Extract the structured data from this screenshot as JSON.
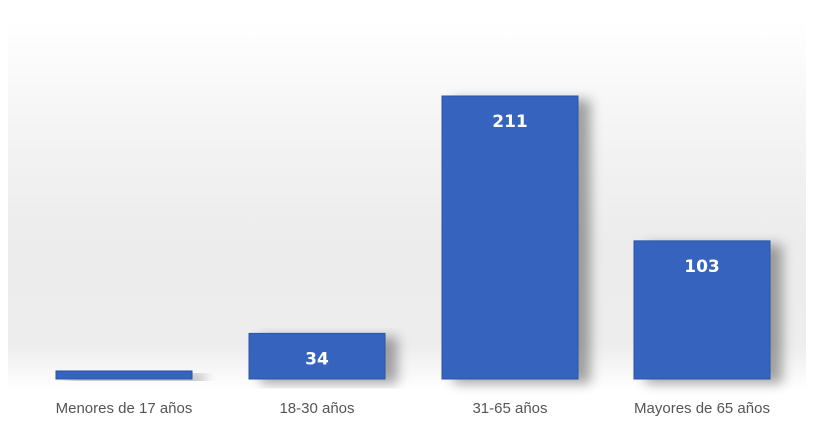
{
  "chart_data": {
    "type": "bar",
    "title": "",
    "xlabel": "",
    "ylabel": "",
    "categories": [
      "Menores de 17 años",
      "18-30 años",
      "31-65 años",
      "Mayores de 65 años"
    ],
    "values": [
      6,
      34,
      211,
      103
    ],
    "data_labels": [
      "",
      "34",
      "211",
      "103"
    ],
    "ylim": [
      0,
      211
    ],
    "grid": false,
    "legend": "none",
    "colors": {
      "bar": "#3463bd",
      "bar_edge": "#2a54a6",
      "label_text": "#555555",
      "value_text": "#ffffff",
      "background_top": "#ffffff",
      "background_mid": "#ebebeb"
    }
  }
}
